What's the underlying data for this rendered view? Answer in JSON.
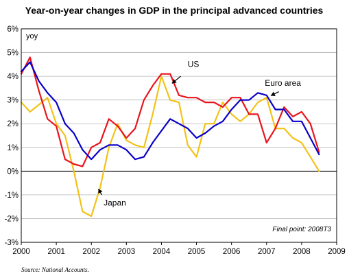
{
  "chart_data": {
    "type": "line",
    "title": "Year-on-year changes in GDP in the principal advanced countries",
    "ylabel": "yoy",
    "xlim": [
      2000,
      2009
    ],
    "ylim": [
      -3,
      6
    ],
    "x_ticks": [
      2000,
      2001,
      2002,
      2003,
      2004,
      2005,
      2006,
      2007,
      2008,
      2009
    ],
    "y_ticks": [
      "-3%",
      "-2%",
      "-1%",
      "0%",
      "1%",
      "2%",
      "3%",
      "4%",
      "5%",
      "6%"
    ],
    "y_tick_values": [
      -3,
      -2,
      -1,
      0,
      1,
      2,
      3,
      4,
      5,
      6
    ],
    "grid": "horizontal",
    "x": [
      2000.0,
      2000.25,
      2000.5,
      2000.75,
      2001.0,
      2001.25,
      2001.5,
      2001.75,
      2002.0,
      2002.25,
      2002.5,
      2002.75,
      2003.0,
      2003.25,
      2003.5,
      2003.75,
      2004.0,
      2004.25,
      2004.5,
      2004.75,
      2005.0,
      2005.25,
      2005.5,
      2005.75,
      2006.0,
      2006.25,
      2006.5,
      2006.75,
      2007.0,
      2007.25,
      2007.5,
      2007.75,
      2008.0,
      2008.25,
      2008.5
    ],
    "series": [
      {
        "name": "US",
        "color": "#e8141c",
        "values": [
          4.1,
          4.8,
          3.4,
          2.2,
          1.9,
          0.5,
          0.3,
          0.2,
          1.0,
          1.2,
          2.2,
          1.9,
          1.4,
          1.8,
          3.0,
          3.6,
          4.1,
          4.1,
          3.2,
          3.1,
          3.1,
          2.9,
          2.9,
          2.7,
          3.1,
          3.1,
          2.4,
          2.4,
          1.2,
          1.8,
          2.7,
          2.3,
          2.5,
          2.0,
          0.8
        ]
      },
      {
        "name": "Euro area",
        "color": "#0a00c8",
        "values": [
          4.2,
          4.6,
          3.8,
          3.3,
          2.9,
          2.0,
          1.6,
          0.9,
          0.5,
          0.9,
          1.1,
          1.1,
          0.9,
          0.5,
          0.6,
          1.2,
          1.7,
          2.2,
          2.0,
          1.8,
          1.4,
          1.6,
          1.9,
          2.1,
          2.6,
          3.0,
          3.0,
          3.3,
          3.2,
          2.6,
          2.6,
          2.1,
          2.1,
          1.4,
          0.7
        ]
      },
      {
        "name": "Japan",
        "color": "#f2c218",
        "values": [
          2.9,
          2.5,
          2.8,
          3.1,
          2.0,
          1.5,
          0.0,
          -1.7,
          -1.9,
          -0.7,
          1.0,
          2.0,
          1.3,
          1.1,
          1.0,
          2.4,
          4.0,
          3.0,
          2.9,
          1.1,
          0.6,
          2.0,
          2.0,
          2.9,
          2.4,
          2.1,
          2.4,
          2.9,
          3.1,
          1.8,
          1.8,
          1.4,
          1.2,
          0.6,
          0.0
        ]
      }
    ],
    "annotations": [
      {
        "text": "US",
        "series": "US"
      },
      {
        "text": "Euro area",
        "series": "Euro area"
      },
      {
        "text": "Japan",
        "series": "Japan"
      }
    ],
    "final_point_note": "Final point: 2008T3",
    "source": "Source: National Accounts."
  }
}
